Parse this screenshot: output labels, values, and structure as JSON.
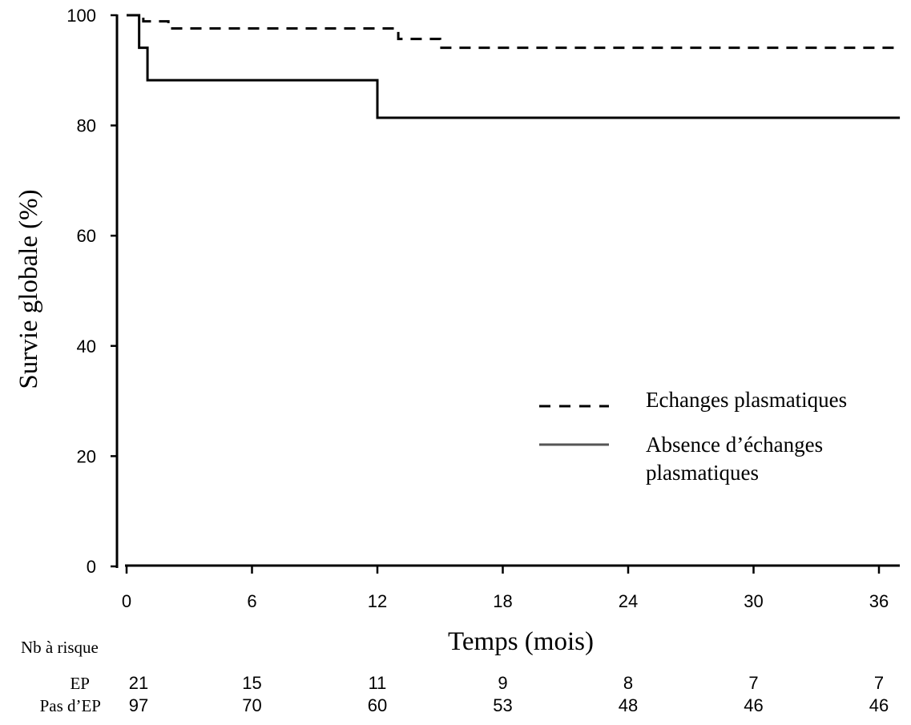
{
  "chart_data": {
    "type": "line",
    "title": "",
    "xlabel": "Temps (mois)",
    "ylabel": "Survie globale (%)",
    "xlim": [
      0,
      37
    ],
    "ylim": [
      0,
      100
    ],
    "xticks": [
      0,
      6,
      12,
      18,
      24,
      30,
      36
    ],
    "yticks": [
      0,
      20,
      40,
      60,
      80,
      100
    ],
    "grid": false,
    "legend_position": "right-middle",
    "series": [
      {
        "name": "Echanges plasmatiques",
        "style": "dashed",
        "color": "#000000",
        "steps": [
          [
            0,
            100
          ],
          [
            0.8,
            98.9
          ],
          [
            2.0,
            97.6
          ],
          [
            13.0,
            95.7
          ],
          [
            15.0,
            94.1
          ],
          [
            37,
            94.1
          ]
        ]
      },
      {
        "name": "Absence d’échanges plasmatiques",
        "legend_lines": [
          "Absence d’échanges",
          "plasmatiques"
        ],
        "style": "solid",
        "color": "#000000",
        "steps": [
          [
            0,
            100
          ],
          [
            0.6,
            94.1
          ],
          [
            1.0,
            88.2
          ],
          [
            12.0,
            81.4
          ],
          [
            37,
            81.4
          ]
        ]
      }
    ],
    "risk_table": {
      "title": "Nb à risque",
      "rows": [
        {
          "label": "EP",
          "values": [
            21,
            15,
            11,
            9,
            8,
            7,
            7
          ]
        },
        {
          "label": "Pas d’EP",
          "values": [
            97,
            70,
            60,
            53,
            48,
            46,
            46
          ]
        }
      ]
    }
  }
}
